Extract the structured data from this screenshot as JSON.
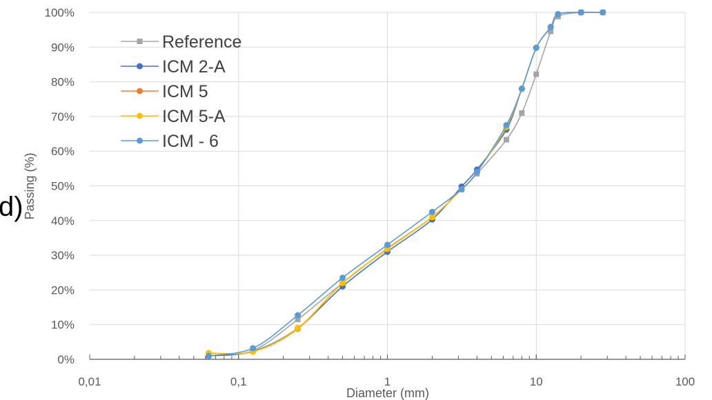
{
  "chart_data": {
    "type": "line",
    "panel_label": "d)",
    "title": "",
    "xlabel": "Diameter (mm)",
    "ylabel": "Passing (%)",
    "x_scale": "log",
    "xlim": [
      0.01,
      100
    ],
    "ylim": [
      0,
      100
    ],
    "grid": "major gridlines",
    "legend_position": "top-left",
    "x_tick_labels": [
      "0,01",
      "0,1",
      "1",
      "10",
      "100"
    ],
    "y_tick_labels": [
      "0%",
      "10%",
      "20%",
      "30%",
      "40%",
      "50%",
      "60%",
      "70%",
      "80%",
      "90%",
      "100%"
    ],
    "x": [
      0.063,
      0.125,
      0.25,
      0.5,
      1,
      2,
      3.15,
      4,
      6.3,
      8,
      10,
      12.5,
      14,
      20,
      28
    ],
    "series": [
      {
        "name": "Reference",
        "color": "#a5a5a5",
        "marker": "square",
        "values": [
          1.0,
          2.5,
          11.5,
          22.0,
          32.0,
          41.0,
          49.0,
          53.5,
          63.3,
          71.0,
          82.2,
          94.5,
          98.8,
          100,
          100
        ]
      },
      {
        "name": "ICM 2-A",
        "color": "#4472c4",
        "marker": "circle",
        "values": [
          1.0,
          2.3,
          9.0,
          21.0,
          31.0,
          40.3,
          49.8,
          54.7,
          66.2,
          78.0,
          89.8,
          95.8,
          99.5,
          100,
          100
        ]
      },
      {
        "name": "ICM 5",
        "color": "#ed7d31",
        "marker": "circle",
        "values": [
          1.8,
          2.2,
          8.8,
          22.0,
          31.8,
          41.0,
          49.0,
          54.0,
          67.0,
          78.0,
          89.8,
          95.8,
          99.5,
          100,
          100
        ]
      },
      {
        "name": "ICM 5-A",
        "color": "#ffc000",
        "marker": "circle",
        "values": [
          1.8,
          2.2,
          9.0,
          22.0,
          31.8,
          41.0,
          49.0,
          54.0,
          67.0,
          78.0,
          89.8,
          95.8,
          99.5,
          100,
          100
        ]
      },
      {
        "name": "ICM - 6",
        "color": "#5b9bd5",
        "marker": "circle",
        "values": [
          1.0,
          3.2,
          12.7,
          23.5,
          33.0,
          42.5,
          49.0,
          54.0,
          67.5,
          78.0,
          89.8,
          95.8,
          99.5,
          100,
          100
        ]
      }
    ]
  }
}
